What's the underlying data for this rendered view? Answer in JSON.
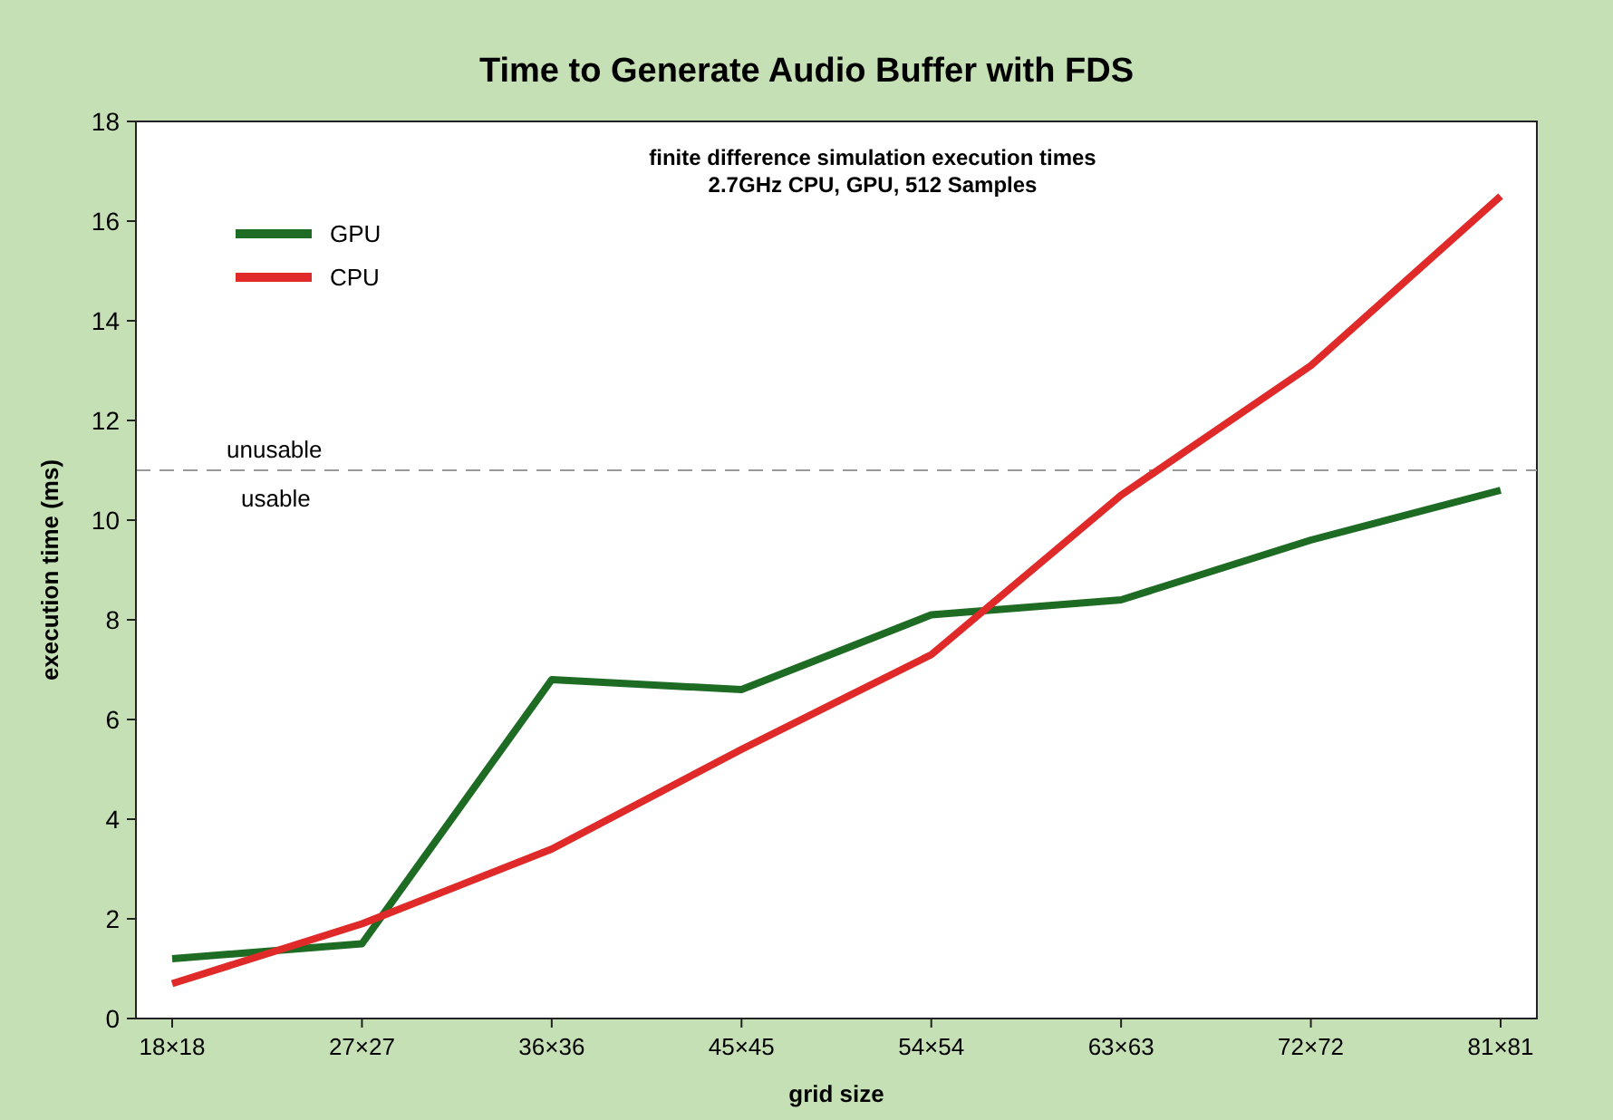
{
  "chart_data": {
    "type": "line",
    "title": "Time to Generate Audio Buffer with FDS",
    "subtitle": "finite difference simulation execution times\n2.7GHz CPU, GPU, 512 Samples",
    "xlabel": "grid size",
    "ylabel": "execution time (ms)",
    "categories": [
      "18×18",
      "27×27",
      "36×36",
      "45×45",
      "54×54",
      "63×63",
      "72×72",
      "81×81"
    ],
    "series": [
      {
        "name": "GPU",
        "color": "#1e6b24",
        "values": [
          1.2,
          1.5,
          6.8,
          6.6,
          8.1,
          8.4,
          9.6,
          10.6
        ]
      },
      {
        "name": "CPU",
        "color": "#e02a2a",
        "values": [
          0.7,
          1.9,
          3.4,
          5.4,
          7.3,
          10.5,
          13.1,
          16.5
        ]
      }
    ],
    "ylim": [
      0,
      18
    ],
    "yticks": [
      0,
      2,
      4,
      6,
      8,
      10,
      12,
      14,
      16,
      18
    ],
    "ref_lines": [
      {
        "axis": "y",
        "value": 11,
        "label": "unusable",
        "color": "#999999",
        "line_style": "dashed"
      }
    ],
    "annotations": [
      "usable"
    ],
    "legend": "top left",
    "grid": false,
    "marker": "none",
    "line_style": "solid"
  }
}
